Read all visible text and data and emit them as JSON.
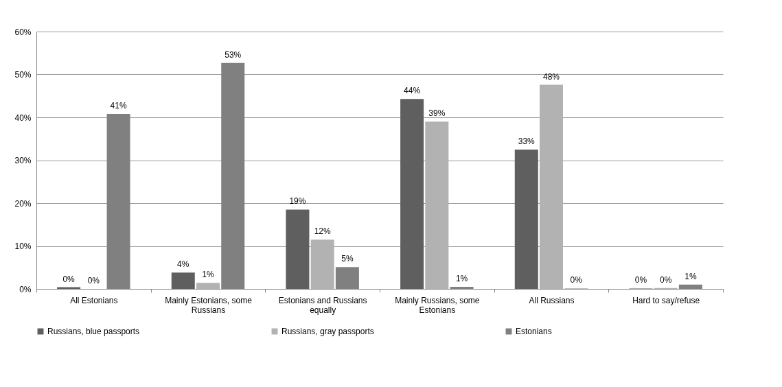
{
  "chart_data": {
    "type": "bar",
    "categories": [
      "All Estonians",
      "Mainly Estonians, some Russians",
      "Estonians and Russians equally",
      "Mainly Russians, some Estonians",
      "All Russians",
      "Hard to say/refuse"
    ],
    "series": [
      {
        "name": "Russians, blue passports",
        "color": "#5f5f5f",
        "values": [
          0.4,
          3.8,
          18.5,
          44.3,
          32.5,
          0.1
        ],
        "value_labels": [
          "0%",
          "4%",
          "19%",
          "44%",
          "33%",
          "0%"
        ]
      },
      {
        "name": "Russians, gray passports",
        "color": "#b2b2b2",
        "values": [
          0,
          1.4,
          11.5,
          39,
          47.6,
          0.2
        ],
        "value_labels": [
          "0%",
          "1%",
          "12%",
          "39%",
          "48%",
          "0%"
        ]
      },
      {
        "name": "Estonians",
        "color": "#808080",
        "values": [
          40.8,
          52.7,
          5.1,
          0.5,
          0.1,
          1.0
        ],
        "value_labels": [
          "41%",
          "53%",
          "5%",
          "1%",
          "0%",
          "1%"
        ]
      }
    ],
    "ylim": [
      0,
      60
    ],
    "yticks": [
      {
        "value": 0,
        "label": "0%"
      },
      {
        "value": 10,
        "label": "10%"
      },
      {
        "value": 20,
        "label": "20%"
      },
      {
        "value": 30,
        "label": "30%"
      },
      {
        "value": 40,
        "label": "40%"
      },
      {
        "value": 50,
        "label": "50%"
      },
      {
        "value": 60,
        "label": "60%"
      }
    ],
    "grid": "y",
    "legend": "bottom"
  }
}
